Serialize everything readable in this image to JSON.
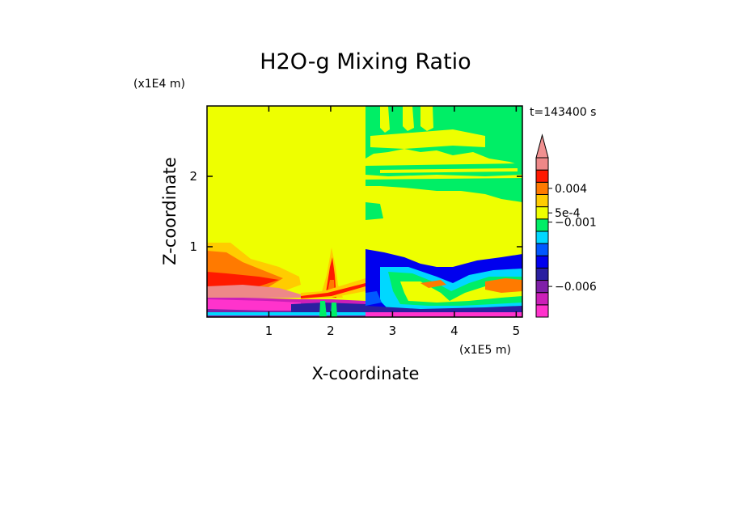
{
  "chart_data": {
    "type": "heatmap",
    "title": "H2O-g Mixing Ratio",
    "xlabel": "X-coordinate",
    "ylabel": "Z-coordinate",
    "x_unit": "(x1E5 m)",
    "y_unit": "(x1E4 m)",
    "time_label": "t=143400 s",
    "xlim": [
      0,
      5.1
    ],
    "ylim": [
      0,
      3.0
    ],
    "x_ticks": [
      {
        "value": 1,
        "label": "1"
      },
      {
        "value": 2,
        "label": "2"
      },
      {
        "value": 3,
        "label": "3"
      },
      {
        "value": 4,
        "label": "4"
      },
      {
        "value": 5,
        "label": "5"
      }
    ],
    "y_ticks": [
      {
        "value": 1,
        "label": "1"
      },
      {
        "value": 2,
        "label": "2"
      }
    ],
    "colorbar": {
      "colors": [
        "#ff33cc",
        "#cc1fb8",
        "#8020a8",
        "#2a1fa0",
        "#0000ee",
        "#0058ff",
        "#00d8ff",
        "#00ee66",
        "#eeff00",
        "#ffcc00",
        "#ff7a00",
        "#ff1a00",
        "#ee8888"
      ],
      "extend_color": "#f09090",
      "labels": [
        {
          "label": "0.004",
          "level": 10.5
        },
        {
          "label": "5e-4",
          "level": 8.5
        },
        {
          "label": "−0.001",
          "level": 7.75
        },
        {
          "label": "−0.006",
          "level": 2.5
        }
      ]
    },
    "grid": false
  }
}
